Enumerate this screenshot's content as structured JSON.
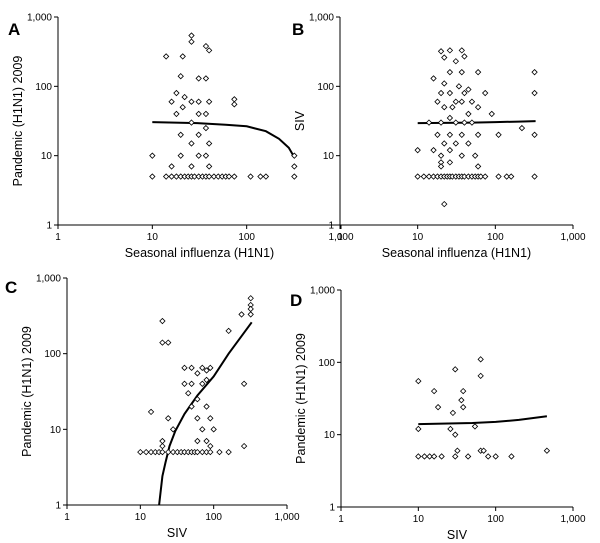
{
  "chart_data": [
    {
      "type": "scatter",
      "panel_label": "A",
      "xlabel": "Seasonal influenza (H1N1)",
      "ylabel": "Pandemic (H1N1) 2009",
      "xscale": "log",
      "yscale": "log",
      "xlim": [
        1,
        1000
      ],
      "ylim": [
        1,
        1000
      ],
      "xticks": [
        "1",
        "10",
        "100",
        "1,000"
      ],
      "yticks": [
        "1",
        "10",
        "100",
        "1,000"
      ],
      "points": [
        [
          14,
          270
        ],
        [
          26,
          440
        ],
        [
          26,
          540
        ],
        [
          21,
          270
        ],
        [
          37,
          380
        ],
        [
          40,
          330
        ],
        [
          20,
          140
        ],
        [
          31,
          130
        ],
        [
          37,
          130
        ],
        [
          18,
          80
        ],
        [
          22,
          70
        ],
        [
          16,
          60
        ],
        [
          26,
          60
        ],
        [
          31,
          60
        ],
        [
          40,
          60
        ],
        [
          21,
          50
        ],
        [
          18,
          40
        ],
        [
          31,
          40
        ],
        [
          26,
          30
        ],
        [
          37,
          40
        ],
        [
          74,
          65
        ],
        [
          74,
          55
        ],
        [
          20,
          20
        ],
        [
          31,
          20
        ],
        [
          37,
          25
        ],
        [
          26,
          15
        ],
        [
          40,
          15
        ],
        [
          20,
          10
        ],
        [
          31,
          10
        ],
        [
          37,
          10
        ],
        [
          10,
          10
        ],
        [
          16,
          7
        ],
        [
          26,
          7
        ],
        [
          40,
          7
        ],
        [
          10,
          5
        ],
        [
          14,
          5
        ],
        [
          16,
          5
        ],
        [
          18,
          5
        ],
        [
          20,
          5
        ],
        [
          22,
          5
        ],
        [
          24,
          5
        ],
        [
          26,
          5
        ],
        [
          28,
          5
        ],
        [
          31,
          5
        ],
        [
          34,
          5
        ],
        [
          37,
          5
        ],
        [
          40,
          5
        ],
        [
          45,
          5
        ],
        [
          50,
          5
        ],
        [
          55,
          5
        ],
        [
          60,
          5
        ],
        [
          65,
          5
        ],
        [
          74,
          5
        ],
        [
          110,
          5
        ],
        [
          140,
          5
        ],
        [
          160,
          5
        ],
        [
          320,
          5
        ],
        [
          320,
          10
        ],
        [
          320,
          7
        ]
      ],
      "fit": [
        [
          10,
          30.5
        ],
        [
          30,
          29.5
        ],
        [
          60,
          28
        ],
        [
          100,
          26.5
        ],
        [
          160,
          22.5
        ],
        [
          220,
          17.5
        ],
        [
          280,
          13
        ],
        [
          320,
          9.5
        ]
      ]
    },
    {
      "type": "scatter",
      "panel_label": "B",
      "xlabel": "Seasonal influenza (H1N1)",
      "ylabel": "SIV",
      "xscale": "log",
      "yscale": "log",
      "xlim": [
        1,
        1000
      ],
      "ylim": [
        1,
        1000
      ],
      "xticks": [
        "1",
        "10",
        "100",
        "1,000"
      ],
      "yticks": [
        "1",
        "10",
        "100",
        "1,000"
      ],
      "points": [
        [
          20,
          320
        ],
        [
          26,
          330
        ],
        [
          37,
          330
        ],
        [
          40,
          270
        ],
        [
          22,
          260
        ],
        [
          31,
          230
        ],
        [
          16,
          130
        ],
        [
          26,
          160
        ],
        [
          37,
          160
        ],
        [
          60,
          160
        ],
        [
          22,
          110
        ],
        [
          34,
          100
        ],
        [
          45,
          90
        ],
        [
          20,
          80
        ],
        [
          26,
          80
        ],
        [
          40,
          80
        ],
        [
          74,
          80
        ],
        [
          18,
          60
        ],
        [
          31,
          60
        ],
        [
          37,
          60
        ],
        [
          50,
          60
        ],
        [
          22,
          50
        ],
        [
          28,
          50
        ],
        [
          45,
          40
        ],
        [
          60,
          50
        ],
        [
          90,
          40
        ],
        [
          14,
          30
        ],
        [
          20,
          30
        ],
        [
          26,
          35
        ],
        [
          31,
          30
        ],
        [
          40,
          30
        ],
        [
          50,
          30
        ],
        [
          18,
          20
        ],
        [
          26,
          20
        ],
        [
          37,
          20
        ],
        [
          60,
          20
        ],
        [
          110,
          20
        ],
        [
          22,
          15
        ],
        [
          31,
          15
        ],
        [
          45,
          15
        ],
        [
          10,
          12
        ],
        [
          16,
          12
        ],
        [
          26,
          12
        ],
        [
          20,
          10
        ],
        [
          37,
          10
        ],
        [
          55,
          10
        ],
        [
          20,
          8
        ],
        [
          26,
          8
        ],
        [
          20,
          7
        ],
        [
          60,
          7
        ],
        [
          10,
          5
        ],
        [
          12,
          5
        ],
        [
          14,
          5
        ],
        [
          16,
          5
        ],
        [
          18,
          5
        ],
        [
          20,
          5
        ],
        [
          22,
          5
        ],
        [
          24,
          5
        ],
        [
          26,
          5
        ],
        [
          28,
          5
        ],
        [
          31,
          5
        ],
        [
          34,
          5
        ],
        [
          37,
          5
        ],
        [
          40,
          5
        ],
        [
          45,
          5
        ],
        [
          50,
          5
        ],
        [
          55,
          5
        ],
        [
          60,
          5
        ],
        [
          65,
          5
        ],
        [
          74,
          5
        ],
        [
          110,
          5
        ],
        [
          140,
          5
        ],
        [
          160,
          5
        ],
        [
          320,
          5
        ],
        [
          22,
          2
        ],
        [
          220,
          25
        ],
        [
          320,
          160
        ],
        [
          320,
          80
        ],
        [
          320,
          20
        ]
      ],
      "fit": [
        [
          10,
          29.5
        ],
        [
          50,
          30
        ],
        [
          100,
          30.5
        ],
        [
          200,
          31
        ],
        [
          330,
          31.5
        ]
      ]
    },
    {
      "type": "scatter",
      "panel_label": "C",
      "xlabel": "SIV",
      "ylabel": "Pandemic (H1N1) 2009",
      "xscale": "log",
      "yscale": "log",
      "xlim": [
        1,
        1000
      ],
      "ylim": [
        1,
        1000
      ],
      "xticks": [
        "1",
        "10",
        "100",
        "1,000"
      ],
      "yticks": [
        "1",
        "10",
        "100",
        "1,000"
      ],
      "points": [
        [
          20,
          270
        ],
        [
          20,
          140
        ],
        [
          24,
          140
        ],
        [
          14,
          17
        ],
        [
          24,
          14
        ],
        [
          28,
          10
        ],
        [
          20,
          7
        ],
        [
          20,
          6
        ],
        [
          10,
          5
        ],
        [
          12,
          5
        ],
        [
          14,
          5
        ],
        [
          16,
          5
        ],
        [
          18,
          5
        ],
        [
          20,
          5
        ],
        [
          24,
          5
        ],
        [
          28,
          5
        ],
        [
          32,
          5
        ],
        [
          36,
          5
        ],
        [
          40,
          5
        ],
        [
          45,
          5
        ],
        [
          50,
          5
        ],
        [
          55,
          5
        ],
        [
          60,
          5
        ],
        [
          70,
          5
        ],
        [
          80,
          5
        ],
        [
          90,
          5
        ],
        [
          120,
          5
        ],
        [
          160,
          5
        ],
        [
          40,
          65
        ],
        [
          50,
          65
        ],
        [
          60,
          55
        ],
        [
          70,
          65
        ],
        [
          80,
          60
        ],
        [
          90,
          65
        ],
        [
          80,
          45
        ],
        [
          40,
          40
        ],
        [
          50,
          40
        ],
        [
          70,
          40
        ],
        [
          45,
          30
        ],
        [
          60,
          25
        ],
        [
          50,
          20
        ],
        [
          80,
          20
        ],
        [
          60,
          14
        ],
        [
          70,
          10
        ],
        [
          90,
          14
        ],
        [
          100,
          10
        ],
        [
          60,
          7
        ],
        [
          80,
          7
        ],
        [
          90,
          6
        ],
        [
          160,
          200
        ],
        [
          240,
          330
        ],
        [
          320,
          540
        ],
        [
          320,
          440
        ],
        [
          320,
          390
        ],
        [
          320,
          330
        ],
        [
          260,
          40
        ],
        [
          260,
          6
        ]
      ],
      "fit": [
        [
          18,
          1
        ],
        [
          20,
          2.4
        ],
        [
          22,
          3.6
        ],
        [
          25,
          6
        ],
        [
          30,
          9.5
        ],
        [
          40,
          16
        ],
        [
          60,
          28
        ],
        [
          100,
          50
        ],
        [
          160,
          100
        ],
        [
          240,
          170
        ],
        [
          330,
          260
        ]
      ]
    },
    {
      "type": "scatter",
      "panel_label": "D",
      "xlabel": "SIV",
      "ylabel": "Pandemic (H1N1) 2009",
      "xscale": "log",
      "yscale": "log",
      "xlim": [
        1,
        1000
      ],
      "ylim": [
        1,
        1000
      ],
      "xticks": [
        "1",
        "10",
        "100",
        "1,000"
      ],
      "yticks": [
        "1",
        "10",
        "100",
        "1,000"
      ],
      "points": [
        [
          10,
          55
        ],
        [
          16,
          40
        ],
        [
          30,
          80
        ],
        [
          38,
          40
        ],
        [
          36,
          30
        ],
        [
          64,
          110
        ],
        [
          64,
          65
        ],
        [
          18,
          24
        ],
        [
          28,
          20
        ],
        [
          38,
          24
        ],
        [
          26,
          12
        ],
        [
          10,
          12
        ],
        [
          30,
          10
        ],
        [
          54,
          13
        ],
        [
          10,
          5
        ],
        [
          12,
          5
        ],
        [
          14,
          5
        ],
        [
          16,
          5
        ],
        [
          20,
          5
        ],
        [
          30,
          5
        ],
        [
          32,
          6
        ],
        [
          44,
          5
        ],
        [
          64,
          6
        ],
        [
          70,
          6
        ],
        [
          80,
          5
        ],
        [
          100,
          5
        ],
        [
          160,
          5
        ],
        [
          460,
          6
        ]
      ],
      "fit": [
        [
          10,
          14
        ],
        [
          50,
          14.5
        ],
        [
          100,
          15
        ],
        [
          200,
          16
        ],
        [
          460,
          18
        ]
      ]
    }
  ]
}
